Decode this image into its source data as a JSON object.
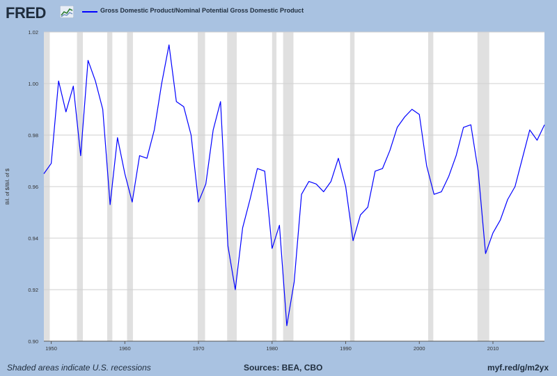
{
  "header": {
    "logo_text": "FRED",
    "logo_icon": "fred-chart-icon",
    "legend_label": "Gross Domestic Product/Nominal Potential Gross Domestic Product",
    "legend_color": "#0000ff"
  },
  "footer": {
    "note": "Shaded areas indicate U.S. recessions",
    "sources": "Sources: BEA, CBO",
    "url": "myf.red/g/m2yx"
  },
  "colors": {
    "background": "#a9c2e1",
    "plot_background": "#ffffff",
    "recession_shade": "#e0e0e0",
    "line": "#0000ff",
    "grid": "#cfcfcf"
  },
  "chart_data": {
    "type": "line",
    "title": "",
    "xlabel": "",
    "ylabel": "Bil. of $/Bil. of $",
    "xlim": [
      1949,
      2017
    ],
    "ylim": [
      0.9,
      1.02
    ],
    "y_ticks": [
      0.9,
      0.92,
      0.94,
      0.96,
      0.98,
      1.0,
      1.02
    ],
    "y_tick_labels": [
      "0.90",
      "0.92",
      "0.94",
      "0.96",
      "0.98",
      "1.00",
      "1.02"
    ],
    "x_ticks": [
      1950,
      1960,
      1970,
      1980,
      1990,
      2000,
      2010
    ],
    "x_tick_labels": [
      "1950",
      "1960",
      "1970",
      "1980",
      "1990",
      "2000",
      "2010"
    ],
    "grid": true,
    "legend_position": "top-left",
    "recessions": [
      [
        1948.9,
        1949.8
      ],
      [
        1953.5,
        1954.3
      ],
      [
        1957.6,
        1958.3
      ],
      [
        1960.3,
        1961.1
      ],
      [
        1969.9,
        1970.9
      ],
      [
        1973.9,
        1975.2
      ],
      [
        1980.0,
        1980.6
      ],
      [
        1981.5,
        1982.9
      ],
      [
        1990.6,
        1991.2
      ],
      [
        2001.2,
        2001.9
      ],
      [
        2007.9,
        2009.5
      ]
    ],
    "series": [
      {
        "name": "Gross Domestic Product/Nominal Potential Gross Domestic Product",
        "x": [
          1949,
          1950,
          1951,
          1952,
          1953,
          1954,
          1955,
          1956,
          1957,
          1958,
          1959,
          1960,
          1961,
          1962,
          1963,
          1964,
          1965,
          1966,
          1967,
          1968,
          1969,
          1970,
          1971,
          1972,
          1973,
          1974,
          1975,
          1976,
          1977,
          1978,
          1979,
          1980,
          1981,
          1982,
          1983,
          1984,
          1985,
          1986,
          1987,
          1988,
          1989,
          1990,
          1991,
          1992,
          1993,
          1994,
          1995,
          1996,
          1997,
          1998,
          1999,
          2000,
          2001,
          2002,
          2003,
          2004,
          2005,
          2006,
          2007,
          2008,
          2009,
          2010,
          2011,
          2012,
          2013,
          2014,
          2015,
          2016,
          2017
        ],
        "y": [
          0.965,
          0.969,
          1.001,
          0.989,
          0.999,
          0.972,
          1.009,
          1.001,
          0.99,
          0.953,
          0.979,
          0.965,
          0.954,
          0.972,
          0.971,
          0.982,
          1.0,
          1.015,
          0.993,
          0.991,
          0.98,
          0.954,
          0.961,
          0.982,
          0.993,
          0.937,
          0.92,
          0.944,
          0.955,
          0.967,
          0.966,
          0.936,
          0.945,
          0.906,
          0.923,
          0.957,
          0.962,
          0.961,
          0.958,
          0.962,
          0.971,
          0.96,
          0.939,
          0.949,
          0.952,
          0.966,
          0.967,
          0.974,
          0.983,
          0.987,
          0.99,
          0.988,
          0.968,
          0.957,
          0.958,
          0.964,
          0.972,
          0.983,
          0.984,
          0.966,
          0.934,
          0.942,
          0.947,
          0.955,
          0.96,
          0.971,
          0.982,
          0.978,
          0.984
        ]
      }
    ]
  }
}
